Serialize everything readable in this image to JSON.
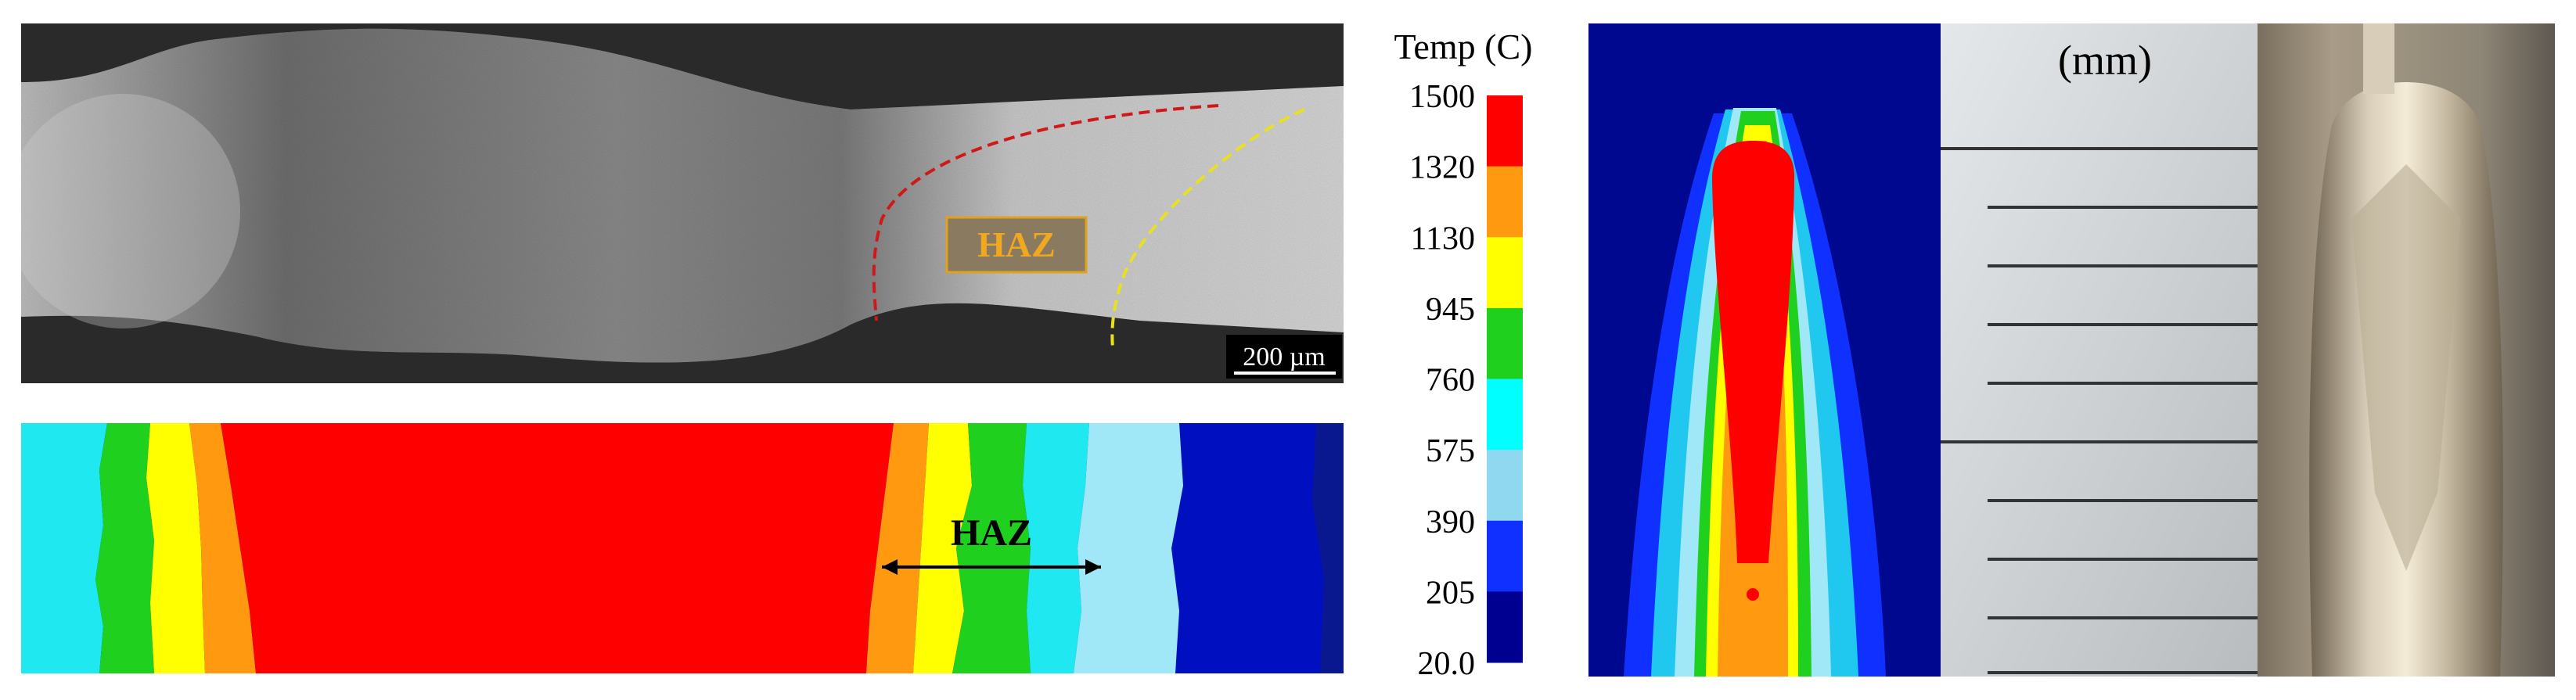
{
  "micrograph": {
    "haz_label": "HAZ",
    "scale_bar_label": "200 µm"
  },
  "simulation_strip": {
    "haz_label": "HAZ"
  },
  "colorbar": {
    "title": "Temp (C)",
    "ticks": [
      "1500",
      "1320",
      "1130",
      "945",
      "760",
      "575",
      "390",
      "205",
      "20.0"
    ],
    "colors": [
      "#ff0000",
      "#ff9a10",
      "#ffff00",
      "#1fd01f",
      "#00ffff",
      "#8fd8f0",
      "#1030ff",
      "#000090"
    ]
  },
  "ruler": {
    "unit_label": "(mm)"
  }
}
